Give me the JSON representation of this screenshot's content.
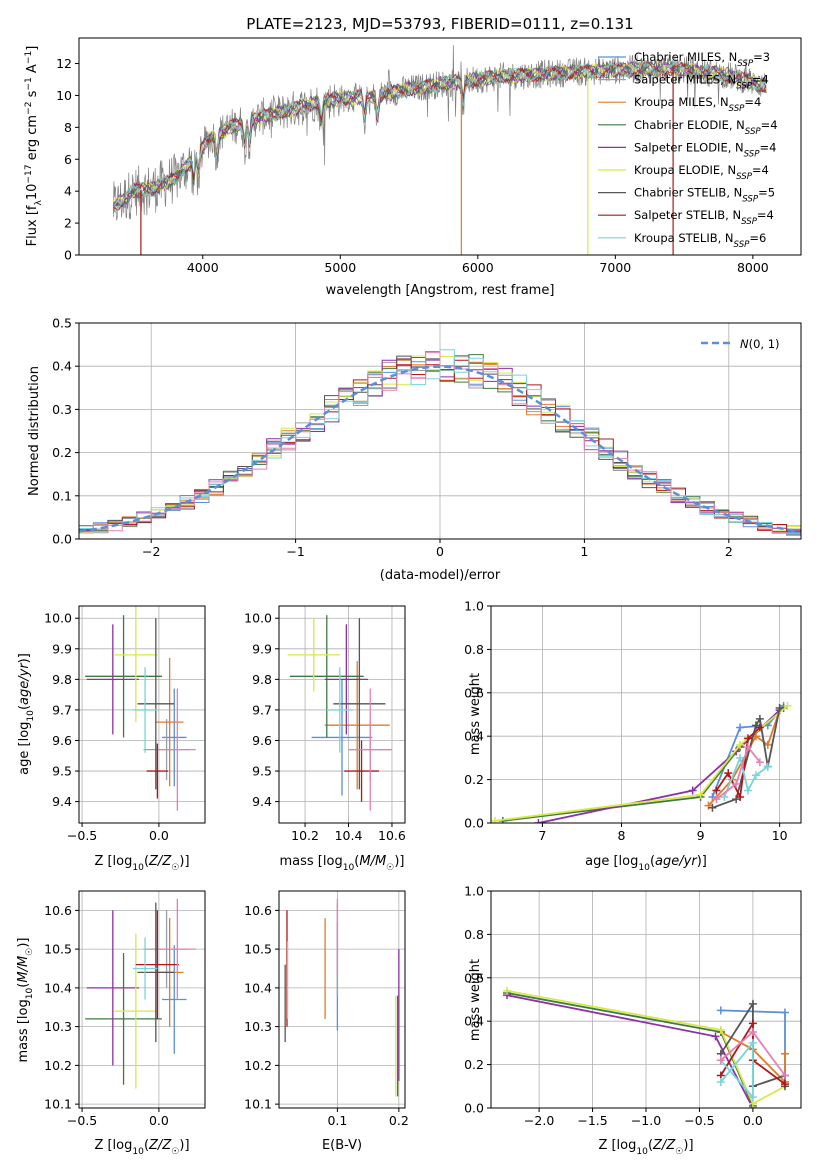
{
  "title": "PLATE=2123, MJD=53793, FIBERID=0111, z=0.131",
  "colors": {
    "Chabrier MILES": "#5b8fd9",
    "Salpeter MILES": "#9aa0a6",
    "Kroupa MILES": "#e07b2a",
    "Chabrier ELODIE": "#3f7a44",
    "Salpeter ELODIE": "#8e2fa6",
    "Kroupa ELODIE": "#d7e848",
    "Chabrier STELIB": "#555555",
    "Salpeter STELIB": "#b01818",
    "Kroupa STELIB": "#76d5dc",
    "pink": "#e87fb2",
    "gaussian": "#5b8fd9"
  },
  "chart_data": [
    {
      "id": "spectrum",
      "type": "line",
      "xlabel": "wavelength [Angstrom, rest frame]",
      "ylabel": "Flux [f_λ10^-17 erg cm^-2 s^-1 A^-1]",
      "xlim": [
        3100,
        8350
      ],
      "ylim": [
        0,
        13.6
      ],
      "xticks": [
        4000,
        5000,
        6000,
        7000,
        8000
      ],
      "yticks": [
        0,
        2,
        4,
        6,
        8,
        10,
        12
      ],
      "legend_position": "right",
      "series": [
        {
          "name": "Chabrier MILES, N_SSP=3"
        },
        {
          "name": "Salpeter MILES, N_SSP=4"
        },
        {
          "name": "Kroupa MILES, N_SSP=4"
        },
        {
          "name": "Chabrier ELODIE, N_SSP=4"
        },
        {
          "name": "Salpeter ELODIE, N_SSP=4"
        },
        {
          "name": "Kroupa ELODIE, N_SSP=4"
        },
        {
          "name": "Chabrier STELIB, N_SSP=5"
        },
        {
          "name": "Salpeter STELIB, N_SSP=4"
        },
        {
          "name": "Kroupa STELIB, N_SSP=6"
        }
      ],
      "continuum": {
        "x": [
          3350,
          3500,
          3650,
          3800,
          3950,
          4050,
          4200,
          4400,
          4600,
          4800,
          5000,
          5200,
          5500,
          5800,
          6200,
          6600,
          7000,
          7400,
          7800,
          8100
        ],
        "y": [
          3.0,
          4.0,
          4.2,
          4.8,
          6.2,
          7.3,
          8.0,
          8.6,
          9.0,
          9.5,
          9.8,
          9.9,
          10.4,
          10.8,
          11.2,
          11.4,
          11.6,
          11.7,
          11.3,
          10.6
        ]
      }
    },
    {
      "id": "residuals",
      "type": "histogram",
      "xlabel": "(data-model)/error",
      "ylabel": "Normed distribution",
      "xlim": [
        -2.5,
        2.5
      ],
      "ylim": [
        0,
        0.5
      ],
      "xticks": [
        -2,
        -1,
        0,
        1,
        2
      ],
      "yticks": [
        0.0,
        0.1,
        0.2,
        0.3,
        0.4,
        0.5
      ],
      "grid": true,
      "legend_position": "top-right",
      "gaussian": {
        "name": "N(0,1)",
        "mu": 0,
        "sigma": 1
      }
    },
    {
      "id": "age-vs-Z",
      "type": "errorbar",
      "xlabel": "Z [log10(Z/Z☉)]",
      "ylabel": "age [log10(age/yr)]",
      "xlim": [
        -0.52,
        0.3
      ],
      "ylim": [
        9.33,
        10.04
      ],
      "xticks": [
        -0.5,
        0.0
      ],
      "yticks": [
        9.4,
        9.5,
        9.6,
        9.7,
        9.8,
        9.9,
        10.0
      ],
      "grid": true,
      "points": [
        {
          "model": "Chabrier MILES",
          "x": 0.1,
          "xerr": 0.08,
          "y": 9.61,
          "yerr": 0.16
        },
        {
          "model": "Salpeter MILES",
          "x": 0.05,
          "xerr": 0.15,
          "y": 9.57,
          "yerr": 0.1
        },
        {
          "model": "Kroupa MILES",
          "x": 0.07,
          "xerr": 0.09,
          "y": 9.66,
          "yerr": 0.21
        },
        {
          "model": "Chabrier ELODIE",
          "x": -0.23,
          "xerr": 0.25,
          "y": 9.81,
          "yerr": 0.2
        },
        {
          "model": "Salpeter ELODIE",
          "x": -0.3,
          "xerr": 0.17,
          "y": 9.8,
          "yerr": 0.18
        },
        {
          "model": "Kroupa ELODIE",
          "x": -0.15,
          "xerr": 0.14,
          "y": 9.88,
          "yerr": 0.22
        },
        {
          "model": "Chabrier STELIB",
          "x": -0.02,
          "xerr": 0.12,
          "y": 9.72,
          "yerr": 0.28
        },
        {
          "model": "Salpeter STELIB",
          "x": -0.01,
          "xerr": 0.07,
          "y": 9.5,
          "yerr": 0.09
        },
        {
          "model": "Kroupa STELIB",
          "x": -0.09,
          "xerr": 0.08,
          "y": 9.7,
          "yerr": 0.14
        },
        {
          "model": "pink",
          "x": 0.12,
          "xerr": 0.12,
          "y": 9.57,
          "yerr": 0.2
        }
      ]
    },
    {
      "id": "age-vs-mass",
      "type": "errorbar",
      "xlabel": "mass [log10(M/M☉)]",
      "ylabel": "",
      "xlim": [
        10.08,
        10.66
      ],
      "ylim": [
        9.33,
        10.04
      ],
      "xticks": [
        10.2,
        10.4,
        10.6
      ],
      "yticks": [
        9.4,
        9.5,
        9.6,
        9.7,
        9.8,
        9.9,
        10.0
      ],
      "grid": true,
      "points": [
        {
          "model": "Chabrier MILES",
          "x": 10.37,
          "xerr": 0.14,
          "y": 9.61,
          "yerr": 0.19
        },
        {
          "model": "Salpeter MILES",
          "x": 10.5,
          "xerr": 0.1,
          "y": 9.57,
          "yerr": 0.1
        },
        {
          "model": "Kroupa MILES",
          "x": 10.44,
          "xerr": 0.15,
          "y": 9.65,
          "yerr": 0.21
        },
        {
          "model": "Chabrier ELODIE",
          "x": 10.3,
          "xerr": 0.17,
          "y": 9.81,
          "yerr": 0.2
        },
        {
          "model": "Salpeter ELODIE",
          "x": 10.39,
          "xerr": 0.1,
          "y": 9.8,
          "yerr": 0.18
        },
        {
          "model": "Kroupa ELODIE",
          "x": 10.24,
          "xerr": 0.12,
          "y": 9.88,
          "yerr": 0.12
        },
        {
          "model": "Chabrier STELIB",
          "x": 10.45,
          "xerr": 0.12,
          "y": 9.72,
          "yerr": 0.28
        },
        {
          "model": "Salpeter STELIB",
          "x": 10.46,
          "xerr": 0.08,
          "y": 9.5,
          "yerr": 0.1
        },
        {
          "model": "Kroupa STELIB",
          "x": 10.36,
          "xerr": 0.06,
          "y": 9.7,
          "yerr": 0.14
        },
        {
          "model": "pink",
          "x": 10.5,
          "xerr": 0.1,
          "y": 9.57,
          "yerr": 0.2
        }
      ]
    },
    {
      "id": "massweight-vs-age",
      "type": "line",
      "xlabel": "age [log10(age/yr)]",
      "ylabel": "mass weight",
      "xlim": [
        6.35,
        10.27
      ],
      "ylim": [
        0,
        1
      ],
      "xticks": [
        7,
        8,
        9,
        10
      ],
      "yticks": [
        0.0,
        0.2,
        0.4,
        0.6,
        0.8,
        1.0
      ],
      "grid": true,
      "series": [
        {
          "model": "Chabrier MILES",
          "x": [
            9.15,
            9.5,
            9.85,
            10.05
          ],
          "y": [
            0.12,
            0.44,
            0.45,
            0.54
          ]
        },
        {
          "model": "Kroupa MILES",
          "x": [
            9.1,
            9.4,
            9.7,
            9.85,
            10.0
          ],
          "y": [
            0.08,
            0.2,
            0.4,
            0.36,
            0.52
          ]
        },
        {
          "model": "Chabrier ELODIE",
          "x": [
            6.5,
            9.0,
            9.5,
            10.05
          ],
          "y": [
            0.01,
            0.12,
            0.35,
            0.53
          ]
        },
        {
          "model": "Salpeter ELODIE",
          "x": [
            6.95,
            8.9,
            9.45,
            10.0
          ],
          "y": [
            0.0,
            0.15,
            0.33,
            0.52
          ]
        },
        {
          "model": "Kroupa ELODIE",
          "x": [
            6.4,
            9.0,
            9.5,
            10.1
          ],
          "y": [
            0.01,
            0.13,
            0.36,
            0.54
          ]
        },
        {
          "model": "Chabrier STELIB",
          "x": [
            9.15,
            9.45,
            9.7,
            9.75,
            9.85,
            10.0
          ],
          "y": [
            0.07,
            0.11,
            0.45,
            0.48,
            0.26,
            0.53
          ]
        },
        {
          "model": "Salpeter STELIB",
          "x": [
            9.2,
            9.35,
            9.5,
            9.6,
            9.75
          ],
          "y": [
            0.15,
            0.23,
            0.12,
            0.39,
            0.44
          ]
        },
        {
          "model": "Kroupa STELIB",
          "x": [
            9.3,
            9.5,
            9.6,
            9.7,
            9.85
          ],
          "y": [
            0.12,
            0.3,
            0.15,
            0.22,
            0.26
          ]
        },
        {
          "model": "pink",
          "x": [
            9.2,
            9.45,
            9.6,
            9.75
          ],
          "y": [
            0.11,
            0.18,
            0.35,
            0.28
          ]
        }
      ]
    },
    {
      "id": "mass-vs-Z",
      "type": "errorbar",
      "xlabel": "Z [log10(Z/Z☉)]",
      "ylabel": "mass [log10(M/M☉)]",
      "xlim": [
        -0.52,
        0.3
      ],
      "ylim": [
        10.09,
        10.65
      ],
      "xticks": [
        -0.5,
        0.0
      ],
      "yticks": [
        10.1,
        10.2,
        10.3,
        10.4,
        10.5,
        10.6
      ],
      "grid": true,
      "points": [
        {
          "model": "Chabrier MILES",
          "x": 0.1,
          "xerr": 0.08,
          "y": 10.37,
          "yerr": 0.14
        },
        {
          "model": "Salpeter MILES",
          "x": 0.05,
          "xerr": 0.15,
          "y": 10.5,
          "yerr": 0.1
        },
        {
          "model": "Kroupa MILES",
          "x": 0.07,
          "xerr": 0.09,
          "y": 10.44,
          "yerr": 0.14
        },
        {
          "model": "Chabrier ELODIE",
          "x": -0.23,
          "xerr": 0.25,
          "y": 10.32,
          "yerr": 0.17
        },
        {
          "model": "Salpeter ELODIE",
          "x": -0.3,
          "xerr": 0.17,
          "y": 10.4,
          "yerr": 0.2
        },
        {
          "model": "Kroupa ELODIE",
          "x": -0.15,
          "xerr": 0.14,
          "y": 10.34,
          "yerr": 0.2
        },
        {
          "model": "Chabrier STELIB",
          "x": -0.02,
          "xerr": 0.12,
          "y": 10.44,
          "yerr": 0.18
        },
        {
          "model": "Salpeter STELIB",
          "x": -0.01,
          "xerr": 0.14,
          "y": 10.46,
          "yerr": 0.14
        },
        {
          "model": "Kroupa STELIB",
          "x": -0.09,
          "xerr": 0.08,
          "y": 10.45,
          "yerr": 0.08
        },
        {
          "model": "pink",
          "x": 0.12,
          "xerr": 0.12,
          "y": 10.5,
          "yerr": 0.13
        }
      ]
    },
    {
      "id": "mass-vs-ebv",
      "type": "errorbar",
      "xlabel": "E(B-V)",
      "ylabel": "",
      "xlim": [
        0.005,
        0.21
      ],
      "ylim": [
        10.09,
        10.65
      ],
      "xticks": [
        0.1,
        0.2
      ],
      "yticks": [
        10.1,
        10.2,
        10.3,
        10.4,
        10.5,
        10.6
      ],
      "grid": true,
      "points": [
        {
          "model": "Chabrier MILES",
          "x": 0.1,
          "xerr": 0,
          "y": 10.43,
          "yerr": 0.14
        },
        {
          "model": "Salpeter MILES",
          "x": 0.1,
          "xerr": 0,
          "y": 10.5,
          "yerr": 0.12
        },
        {
          "model": "Kroupa MILES",
          "x": 0.08,
          "xerr": 0,
          "y": 10.45,
          "yerr": 0.13
        },
        {
          "model": "Chabrier ELODIE",
          "x": 0.198,
          "xerr": 0,
          "y": 10.25,
          "yerr": 0.13
        },
        {
          "model": "Salpeter ELODIE",
          "x": 0.2,
          "xerr": 0,
          "y": 10.33,
          "yerr": 0.17
        },
        {
          "model": "Kroupa ELODIE",
          "x": 0.195,
          "xerr": 0,
          "y": 10.25,
          "yerr": 0.13
        },
        {
          "model": "Chabrier STELIB",
          "x": 0.015,
          "xerr": 0,
          "y": 10.36,
          "yerr": 0.1
        },
        {
          "model": "Salpeter STELIB",
          "x": 0.018,
          "xerr": 0,
          "y": 10.45,
          "yerr": 0.15
        },
        {
          "model": "Kroupa STELIB",
          "x": 0.019,
          "xerr": 0,
          "y": 10.42,
          "yerr": 0.1
        },
        {
          "model": "pink",
          "x": 0.1,
          "xerr": 0,
          "y": 10.53,
          "yerr": 0.1
        }
      ]
    },
    {
      "id": "massweight-vs-Z",
      "type": "line",
      "xlabel": "Z [log10(Z/Z☉)]",
      "ylabel": "mass weight",
      "xlim": [
        -2.45,
        0.45
      ],
      "ylim": [
        0,
        1
      ],
      "xticks": [
        -2.0,
        -1.5,
        -1.0,
        -0.5,
        0.0
      ],
      "yticks": [
        0.0,
        0.2,
        0.4,
        0.6,
        0.8,
        1.0
      ],
      "grid": true,
      "series": [
        {
          "model": "Chabrier MILES",
          "x": [
            -0.3,
            0.3,
            0.3
          ],
          "y": [
            0.45,
            0.44,
            0.12
          ]
        },
        {
          "model": "Kroupa MILES",
          "x": [
            -0.3,
            0.0,
            0.3,
            0.3
          ],
          "y": [
            0.35,
            0.27,
            0.12,
            0.25
          ]
        },
        {
          "model": "Chabrier ELODIE",
          "x": [
            -2.3,
            -0.3,
            0.0
          ],
          "y": [
            0.53,
            0.35,
            0.01
          ]
        },
        {
          "model": "Salpeter ELODIE",
          "x": [
            -2.3,
            -0.35,
            0.0
          ],
          "y": [
            0.52,
            0.33,
            0.0
          ]
        },
        {
          "model": "Kroupa ELODIE",
          "x": [
            -2.3,
            -0.3,
            0.0,
            0.3
          ],
          "y": [
            0.54,
            0.36,
            0.02,
            0.1
          ]
        },
        {
          "model": "Chabrier STELIB",
          "x": [
            -0.3,
            0.0,
            0.0,
            0.3,
            0.3
          ],
          "y": [
            0.25,
            0.48,
            0.1,
            0.15,
            0.1
          ]
        },
        {
          "model": "Salpeter STELIB",
          "x": [
            -0.3,
            0.0,
            0.0,
            0.3
          ],
          "y": [
            0.15,
            0.39,
            0.22,
            0.11
          ]
        },
        {
          "model": "Kroupa STELIB",
          "x": [
            -0.3,
            0.0,
            0.0,
            -0.3
          ],
          "y": [
            0.12,
            0.3,
            0.05,
            0.22
          ]
        },
        {
          "model": "pink",
          "x": [
            -0.3,
            0.0,
            0.3
          ],
          "y": [
            0.22,
            0.35,
            0.15
          ]
        }
      ]
    }
  ]
}
